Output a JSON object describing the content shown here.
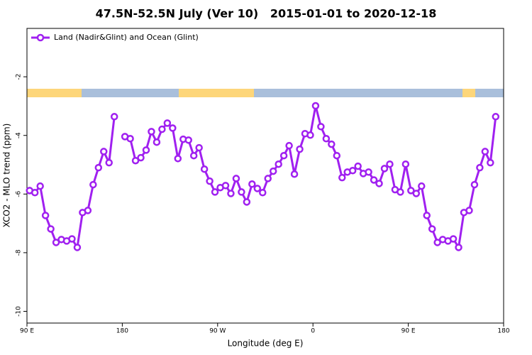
{
  "chart_data": {
    "type": "line",
    "title": "47.5N-52.5N July (Ver 10)   2015-01-01 to 2020-12-18",
    "xlabel": "Longitude (deg E)",
    "ylabel": "XCO2 - MLO trend (ppm)",
    "x": [
      92.5,
      97.5,
      102.5,
      107.5,
      112.5,
      117.5,
      122.5,
      127.5,
      132.5,
      137.5,
      142.5,
      147.5,
      152.5,
      157.5,
      162.5,
      167.5,
      172.5,
      177.5,
      182.5,
      187.5,
      192.5,
      197.5,
      202.5,
      207.5,
      212.5,
      217.5,
      222.5,
      227.5,
      232.5,
      237.5,
      242.5,
      247.5,
      252.5,
      257.5,
      262.5,
      267.5,
      272.5,
      277.5,
      282.5,
      287.5,
      292.5,
      297.5,
      302.5,
      307.5,
      312.5,
      317.5,
      322.5,
      327.5,
      332.5,
      337.5,
      342.5,
      347.5,
      352.5,
      357.5,
      362.5,
      367.5,
      372.5,
      377.5,
      382.5,
      387.5,
      392.5,
      397.5,
      402.5,
      407.5,
      412.5,
      417.5,
      422.5,
      427.5,
      432.5,
      437.5,
      442.5,
      447.5,
      452.5,
      457.5,
      462.5,
      467.5,
      472.5,
      477.5,
      482.5,
      487.5,
      492.5,
      497.5,
      502.5,
      507.5,
      512.5,
      517.5,
      522.5,
      527.5,
      532.5
    ],
    "series": [
      {
        "name": "Land (Nadir&Glint) and Ocean (Glint)",
        "color": "#a020f0",
        "values": [
          -5.88,
          -5.95,
          -5.73,
          -6.73,
          -7.19,
          -7.65,
          -7.55,
          -7.6,
          -7.53,
          -7.82,
          -6.63,
          -6.56,
          -5.68,
          -5.1,
          -4.55,
          -4.93,
          -3.36,
          null,
          -4.04,
          -4.11,
          -4.86,
          -4.76,
          -4.5,
          -3.87,
          -4.23,
          -3.79,
          -3.58,
          -3.75,
          -4.79,
          -4.13,
          -4.16,
          -4.69,
          -4.42,
          -5.15,
          -5.56,
          -5.93,
          -5.78,
          -5.71,
          -5.98,
          -5.47,
          -5.93,
          -6.27,
          -5.66,
          -5.81,
          -5.95,
          -5.47,
          -5.22,
          -4.98,
          -4.69,
          -4.35,
          -5.32,
          -4.47,
          -3.94,
          -3.99,
          -2.99,
          -3.7,
          -4.11,
          -4.3,
          -4.69,
          -5.44,
          -5.25,
          -5.2,
          -5.05,
          -5.3,
          -5.25,
          -5.52,
          -5.64,
          -5.13,
          -4.98,
          -5.85,
          -5.93,
          -4.98,
          -5.88,
          -5.98,
          -5.73,
          -6.73,
          -7.19,
          -7.65,
          -7.55,
          -7.6,
          -7.53,
          -7.82,
          -6.63,
          -6.56,
          -5.68,
          -5.1,
          -4.55,
          -4.93,
          -3.36
        ]
      }
    ],
    "xlim": [
      90,
      540
    ],
    "xticks": [
      {
        "value": 90,
        "label": "90 E"
      },
      180,
      {
        "value": 270,
        "label": "90 W"
      },
      {
        "value": 360,
        "label": "0"
      },
      {
        "value": 450,
        "label": "90 E"
      },
      {
        "value": 540,
        "label": "180"
      }
    ],
    "ylim": [
      -10.4,
      -0.35
    ],
    "yticks": [
      -10,
      -8,
      -6,
      -4,
      -2
    ],
    "legend": "top-left"
  }
}
